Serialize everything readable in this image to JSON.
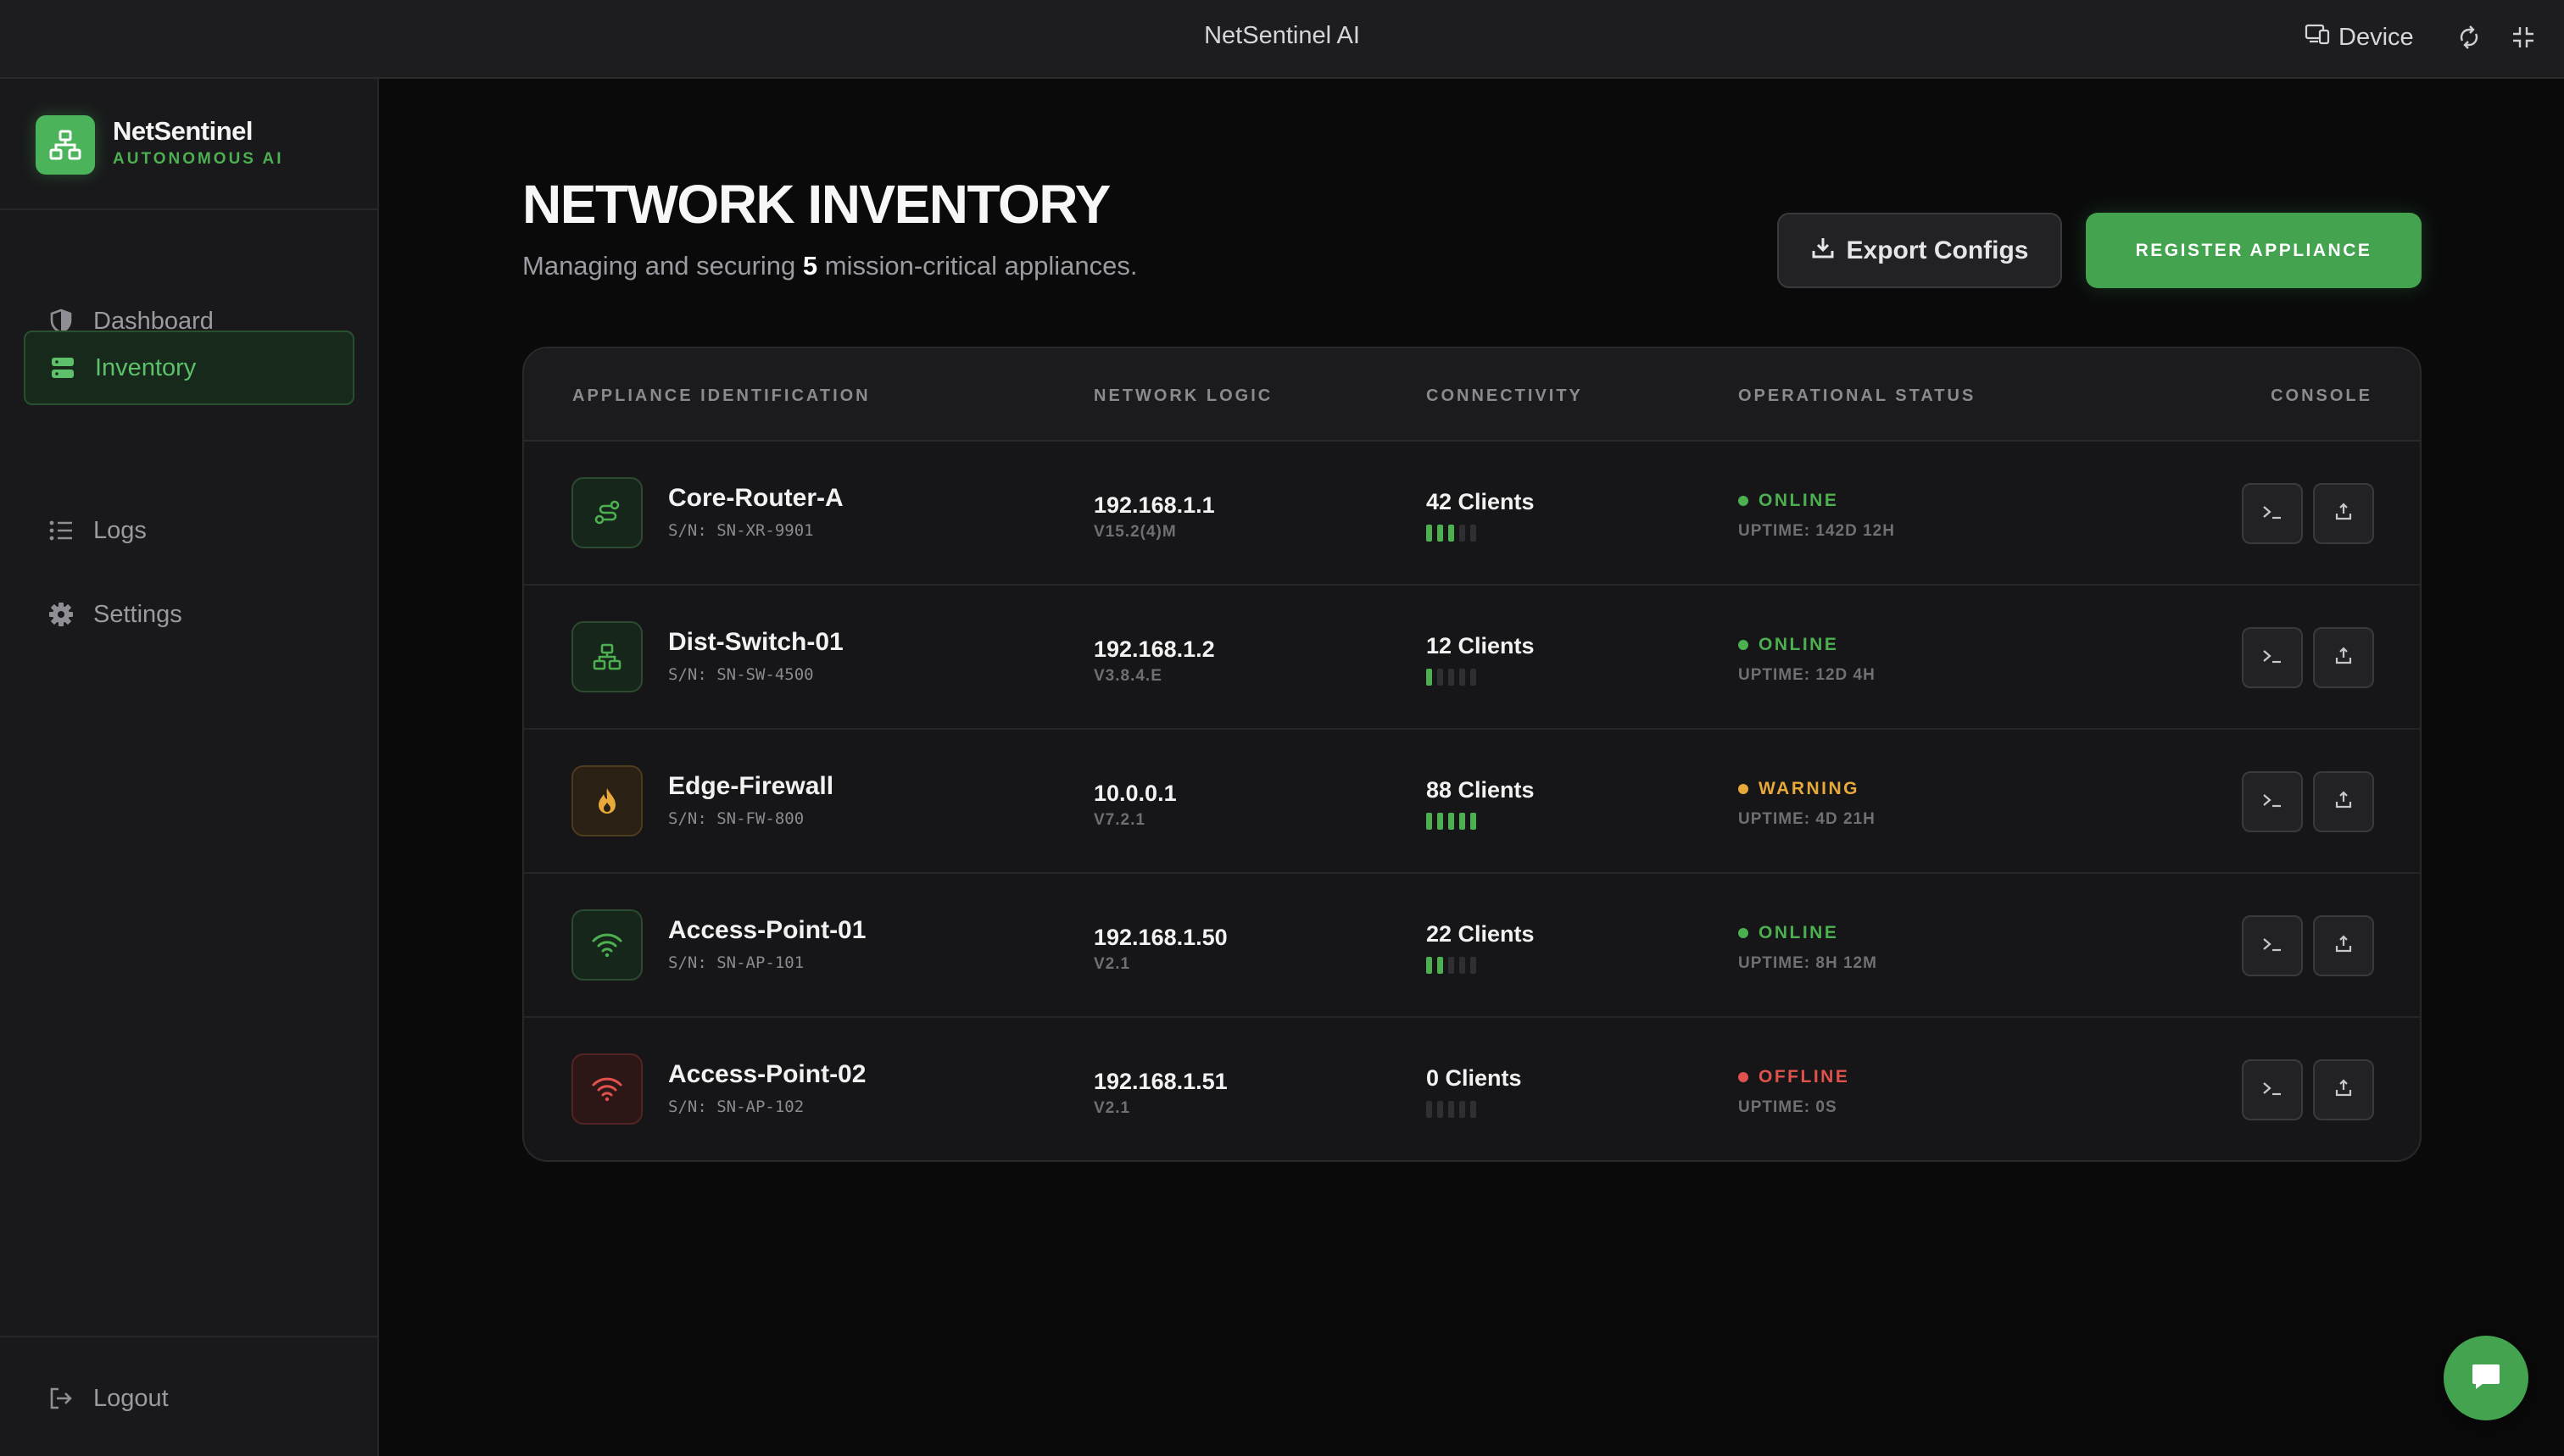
{
  "topbar": {
    "title": "NetSentinel AI",
    "device_label": "Device",
    "icons": [
      "device-icon",
      "rotate-icon",
      "collapse-icon"
    ]
  },
  "sidebar": {
    "brand_name": "NetSentinel",
    "brand_tagline": "AUTONOMOUS AI",
    "items": [
      {
        "label": "Dashboard",
        "icon": "shield-icon",
        "active": false
      },
      {
        "label": "Inventory",
        "icon": "server-icon",
        "active": true
      },
      {
        "label": "Logs",
        "icon": "list-icon",
        "active": false
      },
      {
        "label": "Settings",
        "icon": "gear-icon",
        "active": false
      }
    ],
    "logout_label": "Logout"
  },
  "header": {
    "title": "NETWORK INVENTORY",
    "subtitle_prefix": "Managing and securing",
    "count": "5",
    "subtitle_suffix": "mission-critical appliances.",
    "export_label": "Export Configs",
    "register_label": "REGISTER APPLIANCE"
  },
  "table": {
    "columns": [
      "APPLIANCE IDENTIFICATION",
      "NETWORK LOGIC",
      "CONNECTIVITY",
      "OPERATIONAL STATUS",
      "CONSOLE"
    ],
    "rows": [
      {
        "name": "Core-Router-A",
        "serial": "S/N: SN-XR-9901",
        "ip": "192.168.1.1",
        "firmware": "V15.2(4)M",
        "clients": "42 Clients",
        "signal": 3,
        "status": "ONLINE",
        "uptime": "UPTIME: 142D 12H",
        "icon": "router-icon"
      },
      {
        "name": "Dist-Switch-01",
        "serial": "S/N: SN-SW-4500",
        "ip": "192.168.1.2",
        "firmware": "V3.8.4.E",
        "clients": "12 Clients",
        "signal": 1,
        "status": "ONLINE",
        "uptime": "UPTIME: 12D 4H",
        "icon": "switch-icon"
      },
      {
        "name": "Edge-Firewall",
        "serial": "S/N: SN-FW-800",
        "ip": "10.0.0.1",
        "firmware": "V7.2.1",
        "clients": "88 Clients",
        "signal": 5,
        "status": "WARNING",
        "uptime": "UPTIME: 4D 21H",
        "icon": "flame-icon"
      },
      {
        "name": "Access-Point-01",
        "serial": "S/N: SN-AP-101",
        "ip": "192.168.1.50",
        "firmware": "V2.1",
        "clients": "22 Clients",
        "signal": 2,
        "status": "ONLINE",
        "uptime": "UPTIME: 8H 12M",
        "icon": "wifi-icon"
      },
      {
        "name": "Access-Point-02",
        "serial": "S/N: SN-AP-102",
        "ip": "192.168.1.51",
        "firmware": "V2.1",
        "clients": "0 Clients",
        "signal": 0,
        "status": "OFFLINE",
        "uptime": "UPTIME: 0S",
        "icon": "wifi-icon"
      }
    ]
  },
  "colors": {
    "accent": "#43a34f",
    "online": "#4caf50",
    "warning": "#e8a93a",
    "offline": "#e0524b"
  }
}
